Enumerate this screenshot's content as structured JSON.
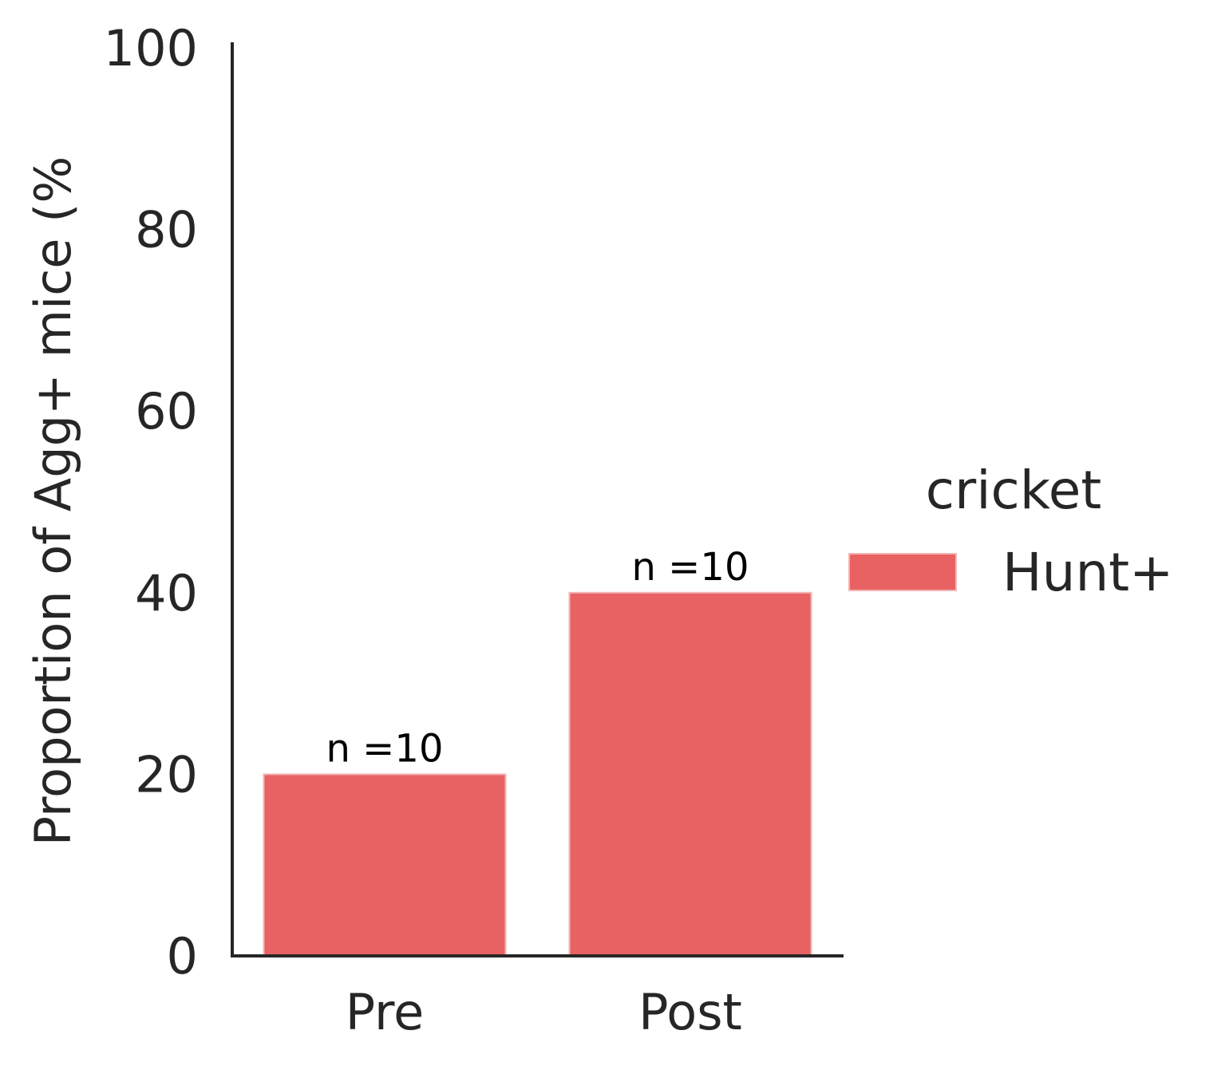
{
  "chart_data": {
    "type": "bar",
    "categories": [
      "Pre",
      "Post"
    ],
    "series": [
      {
        "name": "Hunt+",
        "values": [
          20,
          40
        ],
        "color": "#e86263"
      }
    ],
    "bar_labels": [
      "n =10",
      "n =10"
    ],
    "ylabel": "Proportion of Agg+ mice (%",
    "xlabel": "",
    "ylim": [
      0,
      100
    ],
    "yticks": [
      0,
      20,
      40,
      60,
      80,
      100
    ],
    "grid": false,
    "legend": {
      "title": "cricket",
      "placement": "right",
      "entries": [
        "Hunt+"
      ]
    },
    "axis_color": "#262626"
  }
}
